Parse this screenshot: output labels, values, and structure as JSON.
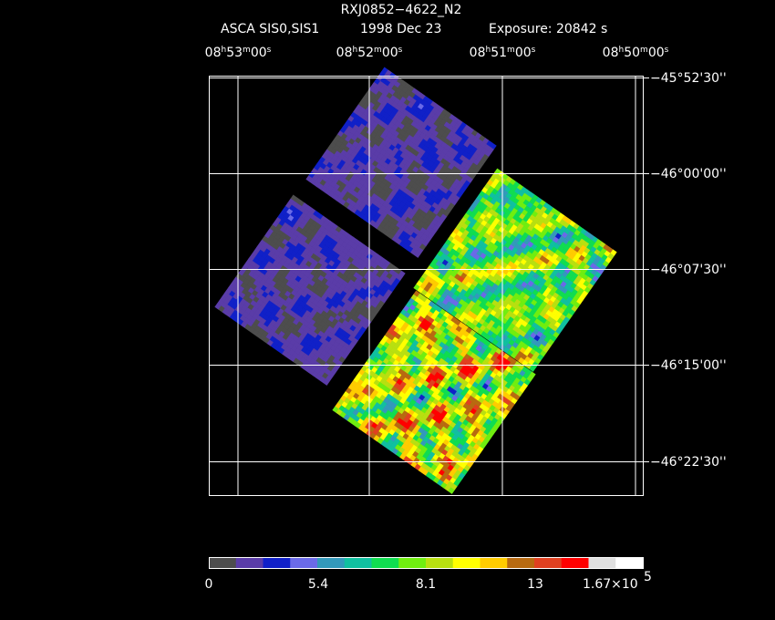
{
  "header": {
    "title": "RXJ0852−4622_N2",
    "instrument": "ASCA SIS0,SIS1",
    "date": "1998 Dec 23",
    "exposure": "Exposure: 20842 s"
  },
  "ra_labels": [
    "08h53m00s",
    "08h52m00s",
    "08h51m00s",
    "08h50m00s"
  ],
  "dec_labels": [
    "−45°52'30''",
    "−46°00'00''",
    "−46°07'30''",
    "−46°15'00''",
    "−46°22'30''"
  ],
  "colorbar": {
    "colors": [
      "#4d4d4d",
      "#5a3ca8",
      "#1020c8",
      "#6a6ae8",
      "#3399bb",
      "#10c0a0",
      "#10dd50",
      "#70ee10",
      "#b8e010",
      "#ffff00",
      "#ffcc00",
      "#b86a10",
      "#e04020",
      "#ff0000",
      "#e0e0e0",
      "#ffffff"
    ],
    "labels": [
      "0",
      "5.4",
      "8.1",
      "13"
    ],
    "max_label": {
      "mantissa": "1.67×10",
      "exponent": "5"
    }
  }
}
